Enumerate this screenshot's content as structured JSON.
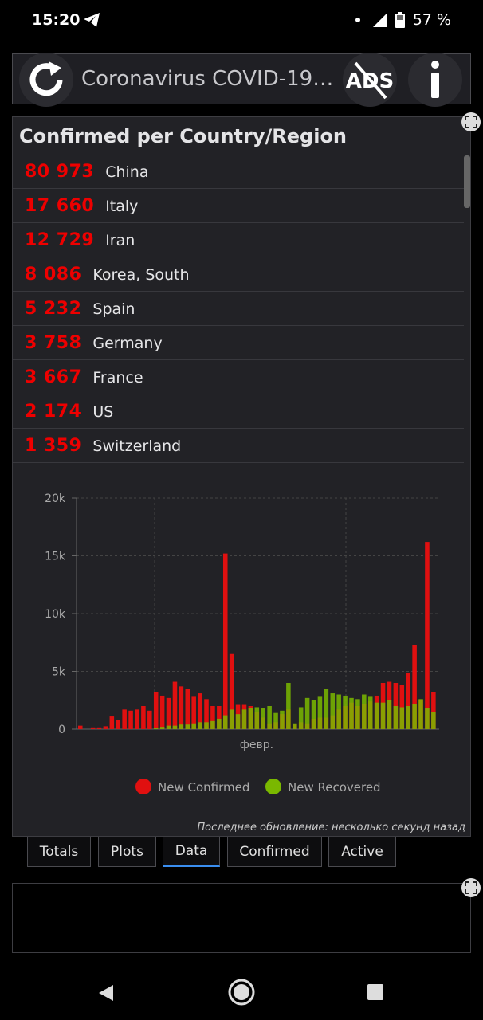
{
  "status": {
    "time": "15:20",
    "battery": "57 %"
  },
  "header": {
    "title": "Coronavirus COVID-19 ..."
  },
  "panel": {
    "title": "Confirmed per Country/Region",
    "rows": [
      {
        "count": "80 973",
        "country": "China"
      },
      {
        "count": "17 660",
        "country": "Italy"
      },
      {
        "count": "12 729",
        "country": "Iran"
      },
      {
        "count": "8 086",
        "country": "Korea, South"
      },
      {
        "count": "5 232",
        "country": "Spain"
      },
      {
        "count": "3 758",
        "country": "Germany"
      },
      {
        "count": "3 667",
        "country": "France"
      },
      {
        "count": "2 174",
        "country": "US"
      },
      {
        "count": "1 359",
        "country": "Switzerland"
      }
    ]
  },
  "chart_data": {
    "type": "bar",
    "ylim": [
      0,
      20000
    ],
    "yticks": [
      "0",
      "5k",
      "10k",
      "15k",
      "20k"
    ],
    "xtick": "февр.",
    "legend": [
      "New Confirmed",
      "New Recovered"
    ],
    "colors": {
      "confirmed": "#e01010",
      "recovered": "#7ab800"
    },
    "series": [
      {
        "name": "New Confirmed",
        "values": [
          300,
          0,
          150,
          150,
          250,
          1100,
          800,
          1700,
          1600,
          1700,
          2000,
          1600,
          3200,
          2900,
          2700,
          4100,
          3700,
          3500,
          2800,
          3100,
          2600,
          2000,
          2000,
          15200,
          6500,
          2100,
          2100,
          2000,
          1500,
          1000,
          500,
          600,
          1300,
          1700,
          400,
          600,
          500,
          900,
          1000,
          1000,
          1200,
          1700,
          2000,
          2300,
          2000,
          2200,
          2400,
          2900,
          4000,
          4100,
          4000,
          3800,
          4900,
          7300,
          2500,
          16200,
          3200
        ]
      },
      {
        "name": "New Recovered",
        "values": [
          0,
          0,
          0,
          0,
          0,
          0,
          0,
          0,
          0,
          0,
          0,
          0,
          100,
          200,
          300,
          300,
          400,
          400,
          500,
          600,
          600,
          700,
          900,
          1200,
          1700,
          1300,
          1700,
          1800,
          1900,
          1800,
          2000,
          1400,
          1600,
          4000,
          500,
          1900,
          2700,
          2500,
          2800,
          3500,
          3100,
          3000,
          2900,
          2700,
          2600,
          3000,
          2800,
          2300,
          2300,
          2500,
          2000,
          1900,
          2000,
          2200,
          2600,
          1800,
          1500
        ]
      }
    ]
  },
  "footer_note": "Последнее обновление: несколько секунд назад",
  "tabs": [
    "Totals",
    "Plots",
    "Data",
    "Confirmed",
    "Active"
  ],
  "active_tab": "Data"
}
